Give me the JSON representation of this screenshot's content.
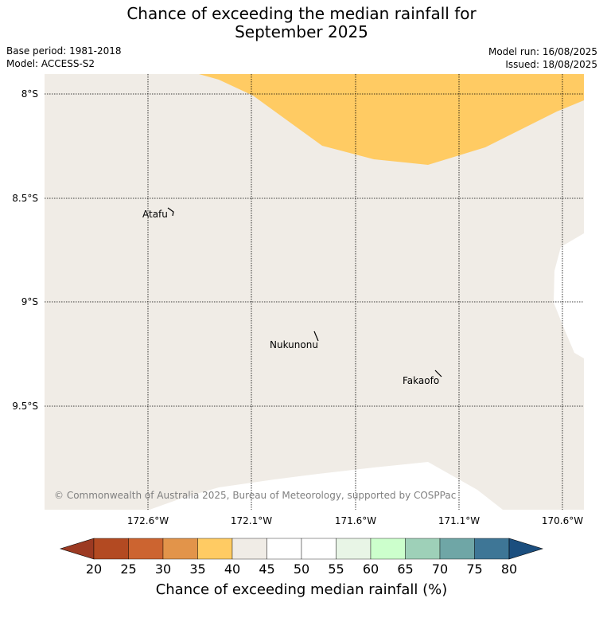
{
  "title_line1": "Chance of exceeding the median rainfall for",
  "title_line2": "September 2025",
  "base_period": "Base period: 1981-2018",
  "model": "Model: ACCESS-S2",
  "model_run": "Model run: 16/08/2025",
  "issued": "Issued: 18/08/2025",
  "copyright": "© Commonwealth of Australia 2025, Bureau of Meteorology, supported by COSPPac",
  "lat_labels": [
    "8°S",
    "8.5°S",
    "9°S",
    "9.5°S"
  ],
  "lon_labels": [
    "172.6°W",
    "172.1°W",
    "171.6°W",
    "171.1°W",
    "170.6°W"
  ],
  "places": [
    {
      "name": "Atafu"
    },
    {
      "name": "Nukunonu"
    },
    {
      "name": "Fakaofo"
    }
  ],
  "colorbar": {
    "title": "Chance of exceeding median rainfall (%)",
    "ticks": [
      "20",
      "25",
      "30",
      "35",
      "40",
      "45",
      "50",
      "55",
      "60",
      "65",
      "70",
      "75",
      "80"
    ],
    "colors": [
      "#9c3a22",
      "#b34a22",
      "#cc6430",
      "#e2944a",
      "#ffcb63",
      "#f0ece6",
      "#ffffff",
      "#ffffff",
      "#e8f5e6",
      "#ccffcc",
      "#9ed0b8",
      "#6fa6a6",
      "#3e7696",
      "#1b4e7e"
    ]
  },
  "map_colors": {
    "background": "#f0ece6",
    "band_35_40": "#ffcb63",
    "band_50_55": "#ffffff"
  }
}
